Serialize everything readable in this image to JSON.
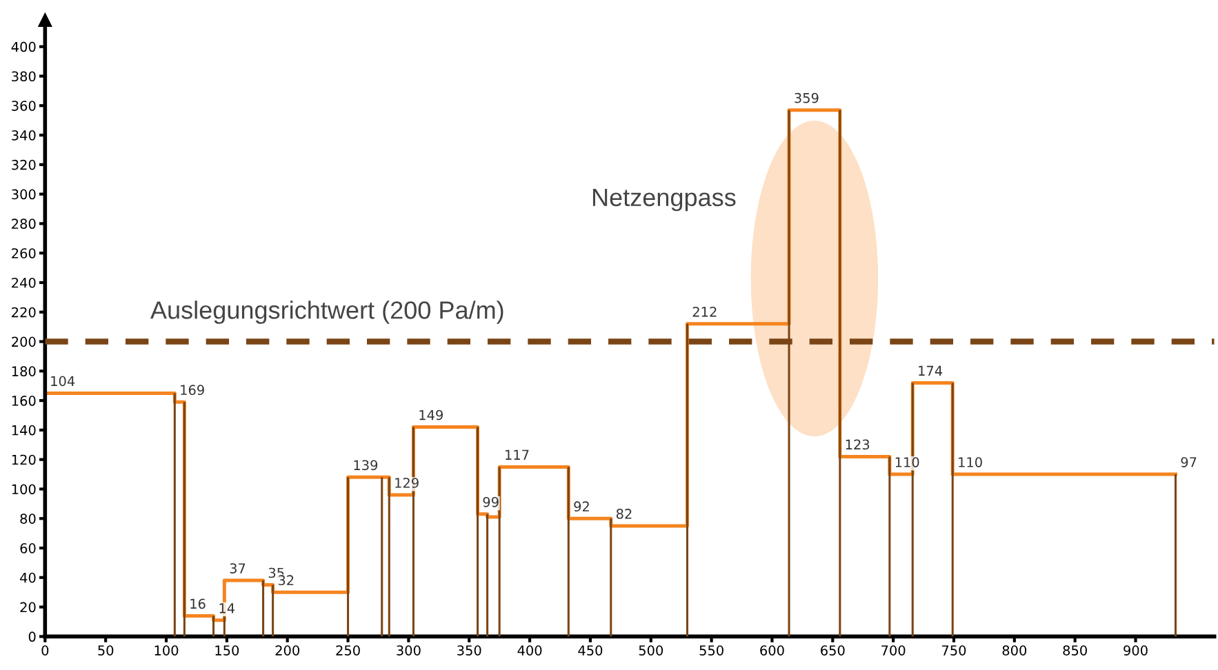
{
  "chart_data": {
    "type": "step",
    "series": [
      {
        "color": "#f5841f",
        "x": [
          0,
          107,
          115,
          139,
          148,
          180,
          188,
          250,
          284,
          304,
          357,
          365,
          375,
          432,
          467,
          530,
          614,
          656,
          697,
          716,
          749,
          933
        ],
        "values": [
          165,
          159,
          14,
          11,
          38,
          35,
          30,
          108,
          96,
          142,
          83,
          81,
          115,
          80,
          75,
          212,
          357,
          122,
          110,
          172,
          110,
          110
        ]
      },
      {
        "type": "bar",
        "color": "#7a4516",
        "x": [
          107,
          115,
          139,
          148,
          180,
          188,
          250,
          278,
          284,
          304,
          357,
          365,
          375,
          432,
          467,
          530,
          614,
          656,
          697,
          716,
          749,
          933
        ],
        "values": [
          165,
          159,
          14,
          14,
          38,
          35,
          108,
          108,
          108,
          142,
          142,
          83,
          115,
          115,
          80,
          212,
          357,
          357,
          122,
          172,
          172,
          110
        ]
      }
    ],
    "xlim": [
      0,
      965
    ],
    "ylim": [
      0,
      418
    ],
    "xticks": [
      0,
      50,
      100,
      150,
      200,
      250,
      300,
      350,
      400,
      450,
      500,
      550,
      600,
      650,
      700,
      750,
      800,
      850,
      900
    ],
    "yticks": [
      0,
      20,
      40,
      60,
      80,
      100,
      120,
      140,
      160,
      180,
      200,
      220,
      240,
      260,
      280,
      300,
      320,
      340,
      360,
      380,
      400
    ],
    "ref_lines": [
      {
        "axis": "y",
        "value": 200,
        "label": "Auslegungsrichtwert (200 Pa/m)",
        "color": "#7a4516",
        "line_style": "dashed"
      }
    ],
    "annotations": [
      "Netzengpass",
      {
        "text": "104",
        "x": 0,
        "y": 165
      },
      {
        "text": "169",
        "x": 107,
        "y": 159
      },
      {
        "text": "16",
        "x": 115,
        "y": 14
      },
      {
        "text": "14",
        "x": 139,
        "y": 11
      },
      {
        "text": "37",
        "x": 148,
        "y": 38
      },
      {
        "text": "35",
        "x": 180,
        "y": 35
      },
      {
        "text": "32",
        "x": 188,
        "y": 30
      },
      {
        "text": "139",
        "x": 250,
        "y": 108
      },
      {
        "text": "129",
        "x": 284,
        "y": 96
      },
      {
        "text": "149",
        "x": 304,
        "y": 142
      },
      {
        "text": "99",
        "x": 357,
        "y": 83
      },
      {
        "text": "117",
        "x": 375,
        "y": 115
      },
      {
        "text": "92",
        "x": 432,
        "y": 80
      },
      {
        "text": "82",
        "x": 467,
        "y": 75
      },
      {
        "text": "212",
        "x": 530,
        "y": 212
      },
      {
        "text": "359",
        "x": 614,
        "y": 357
      },
      {
        "text": "123",
        "x": 656,
        "y": 122
      },
      {
        "text": "110",
        "x": 697,
        "y": 110
      },
      {
        "text": "174",
        "x": 716,
        "y": 172
      },
      {
        "text": "110",
        "x": 749,
        "y": 110
      },
      {
        "text": "97",
        "x": 933,
        "y": 110
      }
    ],
    "grid": false,
    "legend": false
  }
}
